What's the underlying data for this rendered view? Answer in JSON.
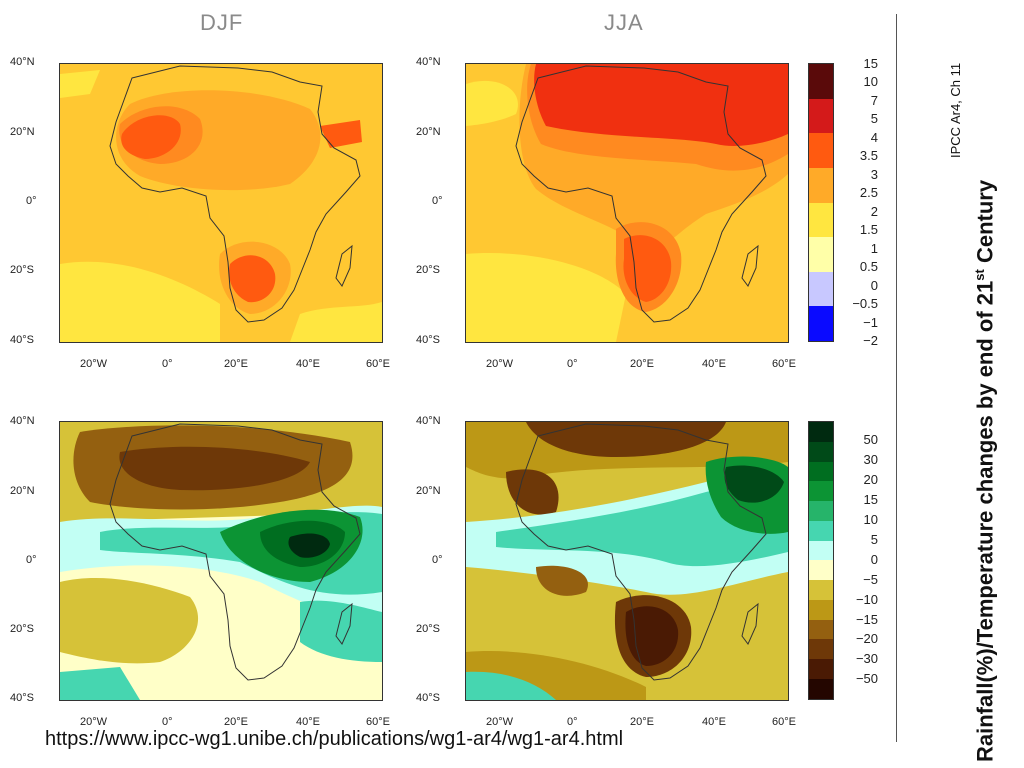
{
  "panels": {
    "djf_title": "DJF",
    "jja_title": "JJA"
  },
  "axes": {
    "y_ticks": [
      "40°N",
      "20°N",
      "0°",
      "20°S",
      "40°S"
    ],
    "x_ticks": [
      "20°W",
      "0°",
      "20°E",
      "40°E",
      "60°E"
    ]
  },
  "temperature_scale": {
    "labels": [
      "15",
      "10",
      "7",
      "5",
      "4",
      "3.5",
      "3",
      "2.5",
      "2",
      "1.5",
      "1",
      "0.5",
      "0",
      "−0.5",
      "−1",
      "−2"
    ],
    "colors": [
      "#5a0a0a",
      "#9e0d0d",
      "#d41a1a",
      "#f03010",
      "#ff5a10",
      "#ff8a20",
      "#ffaa28",
      "#ffc832",
      "#ffe640",
      "#ffff60",
      "#ffffa8",
      "#ffffd0",
      "#c8c8ff",
      "#8080ff",
      "#3c3cff",
      "#0a0aff"
    ]
  },
  "rainfall_scale": {
    "labels": [
      "50",
      "30",
      "20",
      "15",
      "10",
      "5",
      "0",
      "−5",
      "−10",
      "−15",
      "−20",
      "−30",
      "−50"
    ],
    "colors": [
      "#002a10",
      "#004a18",
      "#006e20",
      "#0c9434",
      "#26b46a",
      "#46d6b0",
      "#c2fff4",
      "#ffffc8",
      "#d6c238",
      "#bc9816",
      "#946010",
      "#6e3808",
      "#4a1a04",
      "#240600"
    ]
  },
  "source_url": "https://www.ipcc-wg1.unibe.ch/publications/wg1-ar4/wg1-ar4.html",
  "side": {
    "reference": "IPCC Ar4, Ch 11",
    "title_main": "Rainfall(%)/Temperature changes by end of 21",
    "title_sup": "st",
    "title_end": " Century"
  }
}
